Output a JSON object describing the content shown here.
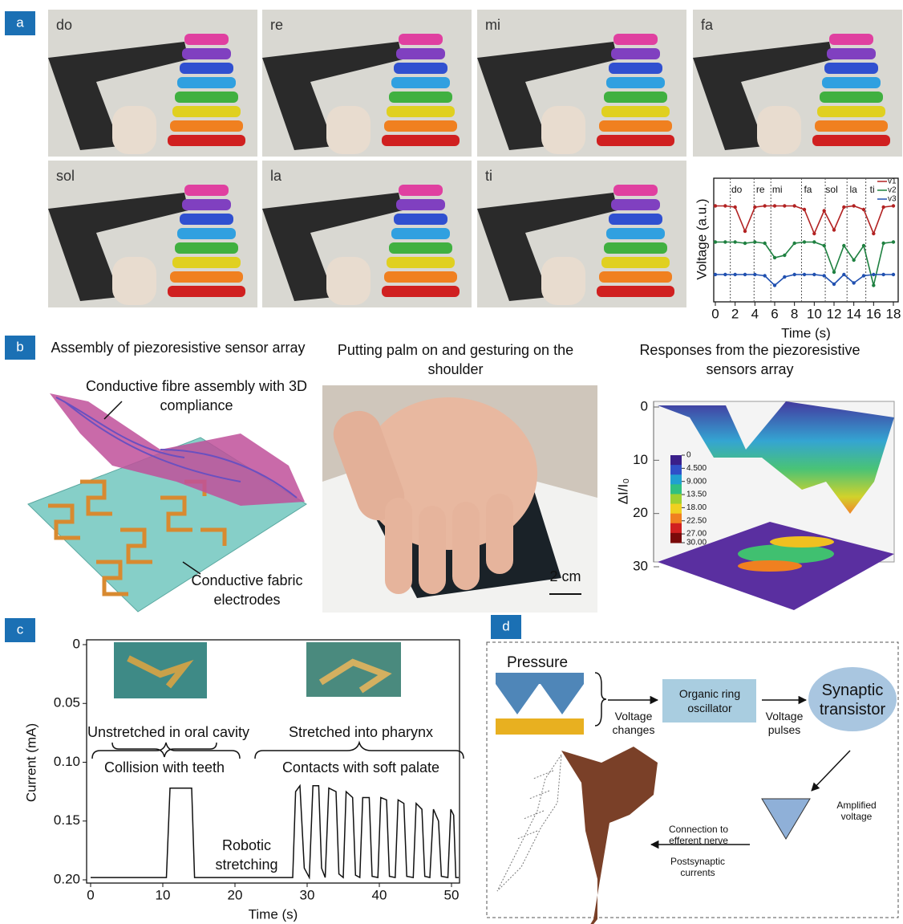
{
  "panel_labels": [
    "a",
    "b",
    "c",
    "d"
  ],
  "panel_a": {
    "photo_labels": [
      "do",
      "re",
      "mi",
      "fa",
      "sol",
      "la",
      "ti"
    ]
  },
  "panel_b": {
    "left_title": "Assembly of piezoresistive sensor array",
    "fibre_label": "Conductive fibre assembly with 3D compliance",
    "electrode_label": "Conductive fabric electrodes",
    "photo_title": "Putting palm on and gesturing on the shoulder",
    "scale_bar": "2 cm"
  },
  "panel_c": {
    "photo_captions": [
      "Unstretched in oral cavity",
      "Stretched into pharynx"
    ],
    "annotations": [
      "Collision with teeth",
      "Contacts with soft palate",
      "Robotic stretching"
    ]
  },
  "panel_d": {
    "pressure": "Pressure",
    "voltage_changes": "Voltage changes",
    "oscillator": "Organic ring oscillator",
    "voltage_pulses": "Voltage pulses",
    "transistor": "Synaptic transistor",
    "amplified": "Amplified voltage",
    "connection": "Connection to efferent nerve",
    "postsynaptic": "Postsynaptic currents"
  },
  "chart_data": [
    {
      "type": "line",
      "xlabel": "Time (s)",
      "ylabel": "Voltage (a.u.)",
      "x": [
        0,
        1,
        2,
        3,
        4,
        5,
        6,
        7,
        8,
        9,
        10,
        11,
        12,
        13,
        14,
        15,
        16,
        17,
        18
      ],
      "series": [
        {
          "name": "v1",
          "color": "#b22222",
          "values": [
            7.9,
            7.9,
            7.8,
            5.8,
            7.8,
            7.9,
            7.9,
            7.9,
            7.9,
            7.6,
            5.6,
            7.5,
            5.9,
            7.8,
            7.9,
            7.6,
            5.6,
            7.8,
            7.9
          ]
        },
        {
          "name": "v2",
          "color": "#1e8040",
          "values": [
            4.9,
            4.9,
            4.9,
            4.8,
            4.9,
            4.8,
            3.6,
            3.8,
            4.8,
            4.9,
            4.9,
            4.6,
            2.4,
            4.6,
            3.4,
            4.6,
            1.3,
            4.8,
            4.9
          ]
        },
        {
          "name": "v3",
          "color": "#2050b0",
          "values": [
            2.2,
            2.2,
            2.2,
            2.2,
            2.2,
            2.1,
            1.3,
            2.0,
            2.2,
            2.2,
            2.2,
            2.1,
            1.4,
            2.2,
            1.5,
            2.1,
            2.2,
            2.2,
            2.2
          ]
        }
      ],
      "xlim": [
        0,
        18
      ],
      "ylim": [
        0,
        10
      ],
      "xticks": [
        0,
        2,
        4,
        6,
        8,
        10,
        12,
        14,
        16,
        18
      ],
      "note_labels": [
        {
          "label": "do",
          "x": 2
        },
        {
          "label": "re",
          "x": 4.4
        },
        {
          "label": "mi",
          "x": 6.1
        },
        {
          "label": "fa",
          "x": 9.2
        },
        {
          "label": "sol",
          "x": 11.6
        },
        {
          "label": "la",
          "x": 13.8
        },
        {
          "label": "ti",
          "x": 15.7
        }
      ],
      "legend": "upper right"
    },
    {
      "type": "surface",
      "title": "Responses from the piezoresistive sensors array",
      "ylabel": "ΔI/I₀",
      "ylim": [
        0,
        30
      ],
      "yticks": [
        0,
        10,
        20,
        30
      ],
      "inverted": true,
      "colorbar_lim": [
        0,
        30
      ],
      "colorbar_ticks": [
        0,
        {
          "value": 4.5,
          "label": "4.500"
        },
        {
          "value": 9,
          "label": "9.000"
        },
        {
          "value": 13.5,
          "label": "13.50"
        },
        {
          "value": 18,
          "label": "18.00"
        },
        {
          "value": 22.5,
          "label": "22.50"
        },
        {
          "value": 27,
          "label": "27.00"
        },
        {
          "value": 30,
          "label": "30.00"
        }
      ],
      "colormap": [
        "#3a1f8a",
        "#3050c8",
        "#20a0d0",
        "#30c080",
        "#a0d030",
        "#f0d020",
        "#f08020",
        "#d02020",
        "#7a0a0a"
      ]
    },
    {
      "type": "line",
      "xlabel": "Time (s)",
      "ylabel": "Current (mA)",
      "inverted": true,
      "color": "#111111",
      "x": [
        0,
        10.5,
        11,
        14,
        14.4,
        28,
        28.4,
        29,
        29.6,
        30.3,
        30.8,
        31.6,
        32,
        32.5,
        33,
        34,
        34.4,
        35,
        35.4,
        36.3,
        36.7,
        37.3,
        37.7,
        38.6,
        39,
        39.8,
        40.2,
        41,
        41.4,
        42.2,
        42.6,
        43.4,
        43.8,
        44.7,
        45.1,
        45.9,
        46.3,
        47,
        47.5,
        48.2,
        48.6,
        49.5,
        49.9,
        50.3,
        50.6,
        51
      ],
      "values": [
        0.198,
        0.198,
        0.122,
        0.122,
        0.198,
        0.198,
        0.125,
        0.12,
        0.19,
        0.198,
        0.12,
        0.12,
        0.19,
        0.198,
        0.122,
        0.125,
        0.195,
        0.198,
        0.125,
        0.13,
        0.196,
        0.198,
        0.13,
        0.13,
        0.197,
        0.198,
        0.13,
        0.132,
        0.197,
        0.198,
        0.132,
        0.135,
        0.197,
        0.198,
        0.135,
        0.14,
        0.197,
        0.198,
        0.14,
        0.15,
        0.197,
        0.198,
        0.14,
        0.145,
        0.198,
        0.198
      ],
      "xlim": [
        0,
        51
      ],
      "ylim": [
        0,
        0.2
      ],
      "xticks": [
        0,
        10,
        20,
        30,
        40,
        50
      ],
      "yticks": [
        0,
        0.05,
        {
          "value": 0.1,
          "label": "0.10"
        },
        0.15,
        {
          "value": 0.2,
          "label": "0.20"
        }
      ]
    }
  ]
}
